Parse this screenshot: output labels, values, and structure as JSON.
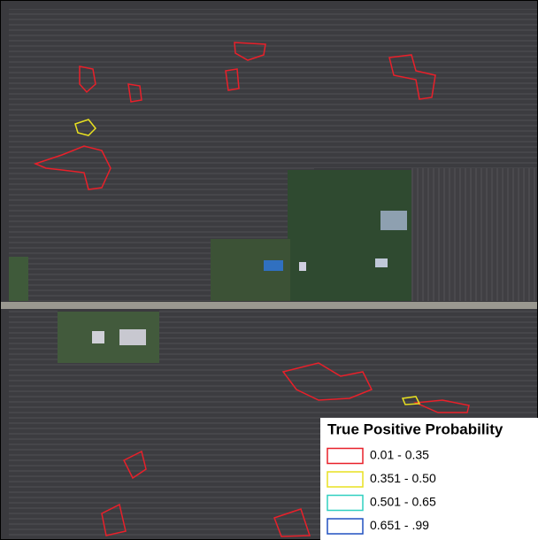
{
  "legend": {
    "title": "True Positive Probability",
    "entries": [
      {
        "label": "0.01 - 0.35",
        "color": "#e8202a"
      },
      {
        "label": "0.351 - 0.50",
        "color": "#e8e020"
      },
      {
        "label": "0.501 - 0.65",
        "color": "#30d0c0"
      },
      {
        "label": "0.651 - .99",
        "color": "#2050c0"
      }
    ]
  }
}
